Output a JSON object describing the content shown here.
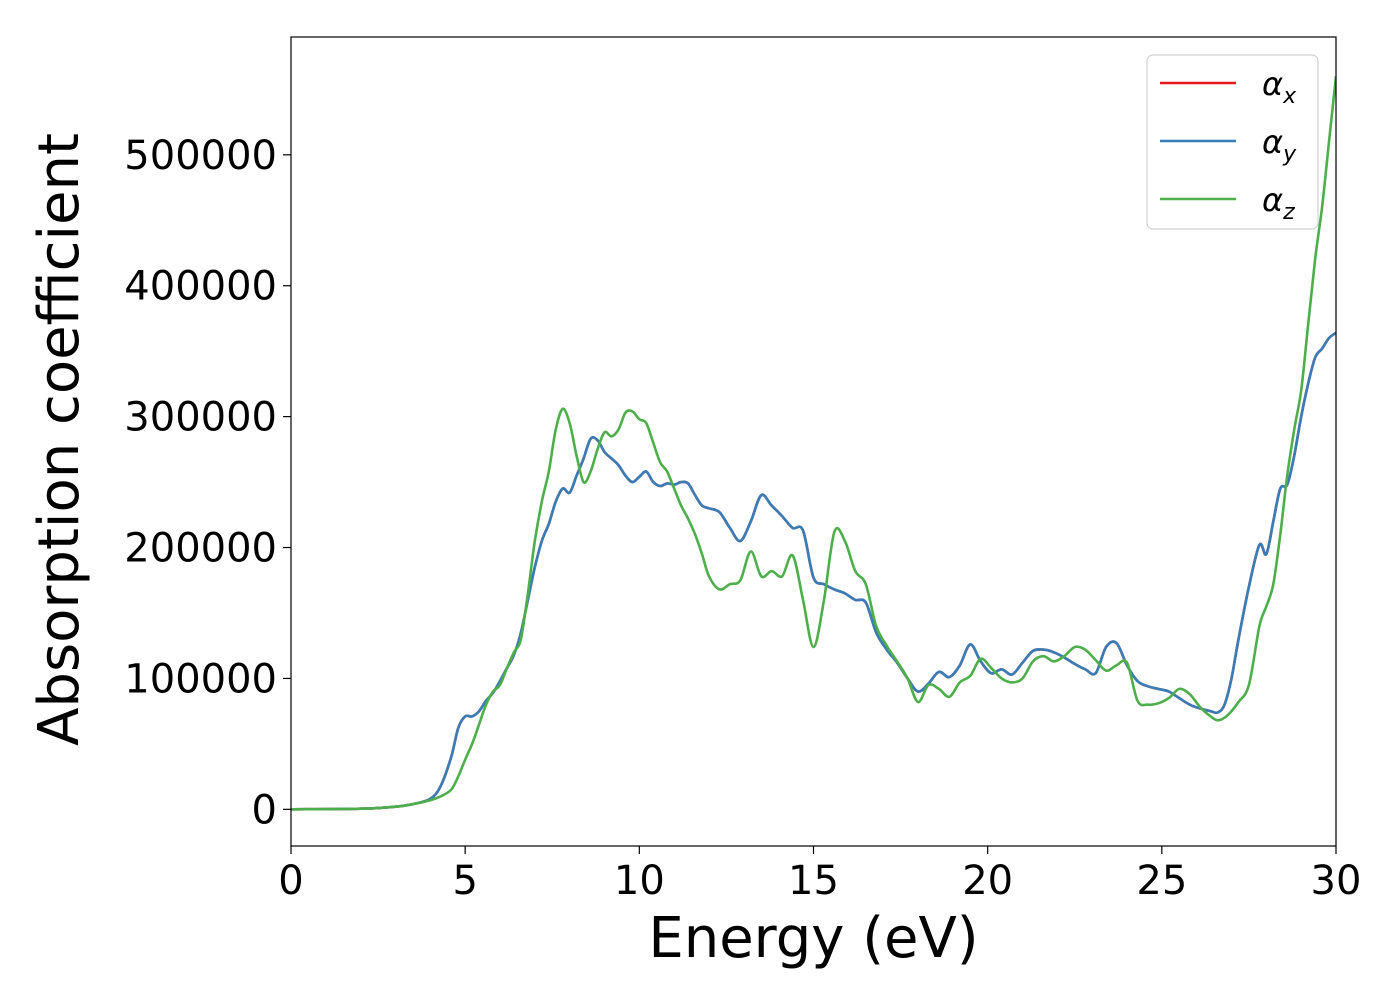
{
  "chart_data": {
    "type": "line",
    "xlabel": "Energy (eV)",
    "ylabel": "Absorption coefficient",
    "xlim": [
      0,
      30
    ],
    "ylim": [
      -28000,
      590000
    ],
    "xticks": [
      0,
      5,
      10,
      15,
      20,
      25,
      30
    ],
    "yticks": [
      0,
      100000,
      200000,
      300000,
      400000,
      500000
    ],
    "grid": false,
    "legend_position": "top-right",
    "series": [
      {
        "name": "αx",
        "color": "#e41a1c",
        "x": [
          0,
          2,
          3,
          3.5,
          4,
          4.3,
          4.6,
          4.8,
          5.0,
          5.2,
          5.4,
          5.6,
          5.8,
          6.0,
          6.2,
          6.4,
          6.6,
          6.8,
          7.0,
          7.2,
          7.4,
          7.6,
          7.8,
          8.0,
          8.2,
          8.4,
          8.6,
          8.8,
          9.0,
          9.2,
          9.4,
          9.6,
          9.8,
          10.0,
          10.2,
          10.4,
          10.6,
          10.8,
          11.0,
          11.2,
          11.4,
          11.6,
          11.8,
          12.0,
          12.3,
          12.6,
          12.9,
          13.2,
          13.5,
          13.8,
          14.1,
          14.4,
          14.7,
          15.0,
          15.3,
          15.6,
          15.9,
          16.2,
          16.5,
          16.8,
          17.1,
          17.4,
          17.7,
          18.0,
          18.3,
          18.6,
          18.9,
          19.2,
          19.5,
          19.8,
          20.1,
          20.4,
          20.7,
          21.0,
          21.3,
          21.6,
          21.9,
          22.2,
          22.5,
          22.8,
          23.1,
          23.4,
          23.7,
          24.0,
          24.3,
          24.6,
          24.9,
          25.2,
          25.5,
          25.8,
          26.1,
          26.4,
          26.6,
          26.8,
          27.0,
          27.2,
          27.5,
          27.8,
          28.0,
          28.2,
          28.4,
          28.6,
          28.8,
          29.0,
          29.2,
          29.4,
          29.6,
          29.8,
          30.0
        ],
        "y": [
          0,
          500,
          2000,
          4000,
          8000,
          18000,
          40000,
          62000,
          71000,
          71000,
          75000,
          83000,
          89000,
          98000,
          108000,
          118000,
          135000,
          160000,
          185000,
          205000,
          218000,
          235000,
          245000,
          242000,
          255000,
          268000,
          283000,
          282000,
          273000,
          268000,
          263000,
          255000,
          250000,
          254000,
          258000,
          250000,
          247000,
          249000,
          248000,
          250000,
          249000,
          240000,
          232000,
          230000,
          227000,
          215000,
          205000,
          220000,
          240000,
          232000,
          224000,
          215000,
          213000,
          177000,
          172000,
          168000,
          165000,
          160000,
          158000,
          135000,
          122000,
          112000,
          100000,
          90000,
          96000,
          105000,
          101000,
          110000,
          126000,
          113000,
          104000,
          107000,
          103000,
          112000,
          121000,
          122000,
          120000,
          116000,
          111000,
          107000,
          104000,
          124000,
          127000,
          110000,
          98000,
          94000,
          92000,
          90000,
          85000,
          80000,
          77000,
          75000,
          74000,
          80000,
          100000,
          130000,
          170000,
          202000,
          195000,
          220000,
          245000,
          248000,
          270000,
          300000,
          325000,
          345000,
          352000,
          360000,
          364000
        ]
      },
      {
        "name": "αy",
        "color": "#377eb8",
        "x": [
          0,
          2,
          3,
          3.5,
          4,
          4.3,
          4.6,
          4.8,
          5.0,
          5.2,
          5.4,
          5.6,
          5.8,
          6.0,
          6.2,
          6.4,
          6.6,
          6.8,
          7.0,
          7.2,
          7.4,
          7.6,
          7.8,
          8.0,
          8.2,
          8.4,
          8.6,
          8.8,
          9.0,
          9.2,
          9.4,
          9.6,
          9.8,
          10.0,
          10.2,
          10.4,
          10.6,
          10.8,
          11.0,
          11.2,
          11.4,
          11.6,
          11.8,
          12.0,
          12.3,
          12.6,
          12.9,
          13.2,
          13.5,
          13.8,
          14.1,
          14.4,
          14.7,
          15.0,
          15.3,
          15.6,
          15.9,
          16.2,
          16.5,
          16.8,
          17.1,
          17.4,
          17.7,
          18.0,
          18.3,
          18.6,
          18.9,
          19.2,
          19.5,
          19.8,
          20.1,
          20.4,
          20.7,
          21.0,
          21.3,
          21.6,
          21.9,
          22.2,
          22.5,
          22.8,
          23.1,
          23.4,
          23.7,
          24.0,
          24.3,
          24.6,
          24.9,
          25.2,
          25.5,
          25.8,
          26.1,
          26.4,
          26.6,
          26.8,
          27.0,
          27.2,
          27.5,
          27.8,
          28.0,
          28.2,
          28.4,
          28.6,
          28.8,
          29.0,
          29.2,
          29.4,
          29.6,
          29.8,
          30.0
        ],
        "y": [
          0,
          500,
          2000,
          4000,
          8000,
          18000,
          40000,
          62000,
          71000,
          71000,
          75000,
          83000,
          89000,
          98000,
          108000,
          118000,
          135000,
          160000,
          185000,
          205000,
          218000,
          235000,
          245000,
          242000,
          255000,
          268000,
          283000,
          282000,
          273000,
          268000,
          263000,
          255000,
          250000,
          254000,
          258000,
          250000,
          247000,
          249000,
          248000,
          250000,
          249000,
          240000,
          232000,
          230000,
          227000,
          215000,
          205000,
          220000,
          240000,
          232000,
          224000,
          215000,
          213000,
          177000,
          172000,
          168000,
          165000,
          160000,
          158000,
          135000,
          122000,
          112000,
          100000,
          90000,
          96000,
          105000,
          101000,
          110000,
          126000,
          113000,
          104000,
          107000,
          103000,
          112000,
          121000,
          122000,
          120000,
          116000,
          111000,
          107000,
          104000,
          124000,
          127000,
          110000,
          98000,
          94000,
          92000,
          90000,
          85000,
          80000,
          77000,
          75000,
          74000,
          80000,
          100000,
          130000,
          170000,
          202000,
          195000,
          220000,
          245000,
          248000,
          270000,
          300000,
          325000,
          345000,
          352000,
          360000,
          364000
        ]
      },
      {
        "name": "αz",
        "color": "#4daf4a",
        "x": [
          0,
          2,
          3,
          3.5,
          4,
          4.3,
          4.6,
          4.8,
          5.0,
          5.2,
          5.4,
          5.6,
          5.8,
          6.0,
          6.2,
          6.4,
          6.6,
          6.8,
          7.0,
          7.2,
          7.4,
          7.6,
          7.8,
          8.0,
          8.2,
          8.4,
          8.6,
          8.8,
          9.0,
          9.2,
          9.4,
          9.6,
          9.8,
          10.0,
          10.2,
          10.4,
          10.6,
          10.8,
          11.0,
          11.2,
          11.4,
          11.6,
          11.8,
          12.0,
          12.3,
          12.6,
          12.9,
          13.2,
          13.5,
          13.8,
          14.1,
          14.4,
          14.7,
          15.0,
          15.3,
          15.6,
          15.9,
          16.2,
          16.5,
          16.8,
          17.1,
          17.4,
          17.7,
          18.0,
          18.3,
          18.6,
          18.9,
          19.2,
          19.5,
          19.8,
          20.1,
          20.4,
          20.7,
          21.0,
          21.3,
          21.6,
          21.9,
          22.2,
          22.5,
          22.8,
          23.1,
          23.4,
          23.7,
          24.0,
          24.3,
          24.6,
          24.9,
          25.2,
          25.5,
          25.8,
          26.1,
          26.4,
          26.6,
          26.8,
          27.0,
          27.2,
          27.5,
          27.8,
          28.0,
          28.2,
          28.4,
          28.6,
          28.8,
          29.0,
          29.2,
          29.4,
          29.6,
          29.8,
          30.0
        ],
        "y": [
          0,
          500,
          2000,
          4000,
          7000,
          10000,
          15000,
          25000,
          38000,
          50000,
          65000,
          80000,
          90000,
          95000,
          108000,
          120000,
          130000,
          165000,
          205000,
          235000,
          258000,
          290000,
          306000,
          295000,
          270000,
          250000,
          258000,
          275000,
          288000,
          285000,
          290000,
          303000,
          304000,
          298000,
          295000,
          280000,
          265000,
          258000,
          245000,
          232000,
          222000,
          210000,
          195000,
          178000,
          168000,
          172000,
          175000,
          197000,
          178000,
          182000,
          178000,
          194000,
          160000,
          124000,
          160000,
          212000,
          205000,
          182000,
          172000,
          140000,
          125000,
          113000,
          100000,
          82000,
          95000,
          92000,
          86000,
          97000,
          102000,
          115000,
          108000,
          100000,
          97000,
          100000,
          113000,
          117000,
          113000,
          117000,
          124000,
          122000,
          114000,
          106000,
          110000,
          112000,
          83000,
          80000,
          81000,
          85000,
          92000,
          88000,
          78000,
          71000,
          68000,
          70000,
          75000,
          82000,
          95000,
          140000,
          155000,
          172000,
          210000,
          255000,
          290000,
          320000,
          370000,
          420000,
          460000,
          510000,
          560000
        ]
      }
    ]
  }
}
